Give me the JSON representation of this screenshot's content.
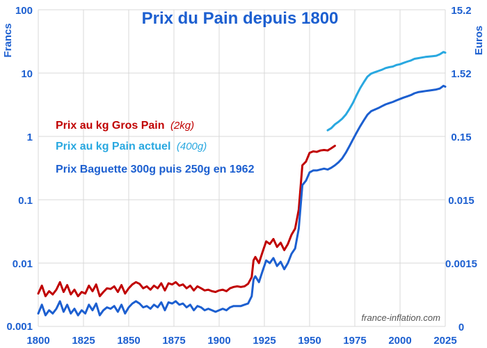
{
  "chart_data": {
    "type": "line",
    "title": "Prix du Pain depuis 1800",
    "left_axis_label": "Francs",
    "right_axis_label": "Euros",
    "left_scale": "log",
    "x_range": [
      1800,
      2025
    ],
    "y_range_francs": [
      0.001,
      100
    ],
    "x_ticks": [
      "1800",
      "1825",
      "1850",
      "1875",
      "1900",
      "1925",
      "1950",
      "1975",
      "2000",
      "2025"
    ],
    "y_ticks_left": [
      "0.001",
      "0.01",
      "0.1",
      "1",
      "10",
      "100"
    ],
    "y_ticks_left_values": [
      0.001,
      0.01,
      0.1,
      1,
      10,
      100
    ],
    "y_ticks_right": [
      "0",
      "0.0015",
      "0.015",
      "0.15",
      "1.52",
      "15.2"
    ],
    "y_ticks_right_values": [
      0.001,
      0.01,
      0.1,
      1,
      10,
      100
    ],
    "grid": true,
    "legend_position": "center-left",
    "watermark": "france-inflation.com",
    "colors": {
      "title": "#1c5fd0",
      "axis": "#1c5fd0",
      "grid": "#d9d9d9"
    },
    "series": [
      {
        "name": "Prix au kg Gros Pain",
        "note": "(2kg)",
        "color": "#c00000",
        "x": [
          1800,
          1802,
          1804,
          1806,
          1808,
          1810,
          1812,
          1814,
          1816,
          1818,
          1820,
          1822,
          1824,
          1826,
          1828,
          1830,
          1832,
          1834,
          1836,
          1838,
          1840,
          1842,
          1844,
          1846,
          1848,
          1850,
          1852,
          1854,
          1856,
          1858,
          1860,
          1862,
          1864,
          1866,
          1868,
          1870,
          1872,
          1874,
          1876,
          1878,
          1880,
          1882,
          1884,
          1886,
          1888,
          1890,
          1892,
          1894,
          1896,
          1898,
          1900,
          1902,
          1904,
          1906,
          1908,
          1910,
          1912,
          1914,
          1916,
          1918,
          1919,
          1920,
          1922,
          1924,
          1926,
          1928,
          1930,
          1932,
          1934,
          1936,
          1938,
          1940,
          1942,
          1944,
          1946,
          1948,
          1950,
          1952,
          1954,
          1956,
          1958,
          1960,
          1962,
          1964
        ],
        "y": [
          0.0033,
          0.0044,
          0.003,
          0.0036,
          0.0032,
          0.0038,
          0.005,
          0.0035,
          0.0045,
          0.0032,
          0.0038,
          0.003,
          0.0035,
          0.0033,
          0.0044,
          0.0036,
          0.0046,
          0.003,
          0.0035,
          0.004,
          0.0039,
          0.0043,
          0.0035,
          0.0045,
          0.0033,
          0.004,
          0.0046,
          0.005,
          0.0047,
          0.004,
          0.0043,
          0.0038,
          0.0044,
          0.004,
          0.0048,
          0.0037,
          0.0048,
          0.0046,
          0.005,
          0.0044,
          0.0046,
          0.004,
          0.0044,
          0.0037,
          0.0043,
          0.004,
          0.0037,
          0.0038,
          0.0036,
          0.0035,
          0.0037,
          0.0038,
          0.0036,
          0.004,
          0.0042,
          0.0043,
          0.0042,
          0.0043,
          0.0047,
          0.006,
          0.011,
          0.0125,
          0.01,
          0.015,
          0.022,
          0.02,
          0.024,
          0.018,
          0.021,
          0.016,
          0.02,
          0.028,
          0.035,
          0.07,
          0.35,
          0.4,
          0.55,
          0.58,
          0.57,
          0.6,
          0.61,
          0.6,
          0.65,
          0.71
        ]
      },
      {
        "name": "Prix au kg Pain actuel",
        "note": "(400g)",
        "color": "#29a8e0",
        "x": [
          1960,
          1962,
          1964,
          1966,
          1968,
          1970,
          1972,
          1974,
          1976,
          1978,
          1980,
          1982,
          1984,
          1986,
          1988,
          1990,
          1992,
          1994,
          1996,
          1998,
          2000,
          2002,
          2004,
          2006,
          2008,
          2010,
          2012,
          2014,
          2016,
          2018,
          2020,
          2022,
          2024,
          2025
        ],
        "y": [
          1.25,
          1.35,
          1.55,
          1.7,
          1.9,
          2.2,
          2.7,
          3.4,
          4.5,
          5.8,
          7.2,
          8.8,
          9.8,
          10.3,
          10.8,
          11.3,
          12.0,
          12.4,
          12.7,
          13.4,
          13.8,
          14.5,
          15.2,
          15.8,
          16.8,
          17.2,
          17.6,
          18.0,
          18.2,
          18.5,
          18.8,
          19.8,
          21.5,
          21.0
        ]
      },
      {
        "name": "Prix Baguette 300g puis 250g en 1962",
        "note": "",
        "color": "#1c5fd0",
        "x": [
          1800,
          1802,
          1804,
          1806,
          1808,
          1810,
          1812,
          1814,
          1816,
          1818,
          1820,
          1822,
          1824,
          1826,
          1828,
          1830,
          1832,
          1834,
          1836,
          1838,
          1840,
          1842,
          1844,
          1846,
          1848,
          1850,
          1852,
          1854,
          1856,
          1858,
          1860,
          1862,
          1864,
          1866,
          1868,
          1870,
          1872,
          1874,
          1876,
          1878,
          1880,
          1882,
          1884,
          1886,
          1888,
          1890,
          1892,
          1894,
          1896,
          1898,
          1900,
          1902,
          1904,
          1906,
          1908,
          1910,
          1912,
          1914,
          1916,
          1918,
          1919,
          1920,
          1922,
          1924,
          1926,
          1928,
          1930,
          1932,
          1934,
          1936,
          1938,
          1940,
          1942,
          1944,
          1946,
          1948,
          1950,
          1952,
          1954,
          1956,
          1958,
          1960,
          1962,
          1964,
          1966,
          1968,
          1970,
          1972,
          1974,
          1976,
          1978,
          1980,
          1982,
          1984,
          1986,
          1988,
          1990,
          1992,
          1994,
          1996,
          1998,
          2000,
          2002,
          2004,
          2006,
          2008,
          2010,
          2012,
          2014,
          2016,
          2018,
          2020,
          2022,
          2024,
          2025
        ],
        "y": [
          0.0016,
          0.0022,
          0.0015,
          0.0018,
          0.0016,
          0.0019,
          0.0025,
          0.0017,
          0.0022,
          0.0016,
          0.0019,
          0.0015,
          0.0018,
          0.0016,
          0.0022,
          0.0018,
          0.0023,
          0.0015,
          0.0018,
          0.002,
          0.0019,
          0.0021,
          0.0017,
          0.0022,
          0.0016,
          0.002,
          0.0023,
          0.0025,
          0.0023,
          0.002,
          0.0021,
          0.0019,
          0.0022,
          0.002,
          0.0024,
          0.0018,
          0.0024,
          0.0023,
          0.0025,
          0.0022,
          0.0023,
          0.002,
          0.0022,
          0.0018,
          0.0021,
          0.002,
          0.0018,
          0.0019,
          0.0018,
          0.0017,
          0.0018,
          0.0019,
          0.0018,
          0.002,
          0.0021,
          0.0021,
          0.0021,
          0.0022,
          0.0023,
          0.003,
          0.0055,
          0.0062,
          0.005,
          0.0075,
          0.011,
          0.01,
          0.012,
          0.009,
          0.0105,
          0.008,
          0.01,
          0.014,
          0.017,
          0.035,
          0.17,
          0.2,
          0.27,
          0.29,
          0.29,
          0.3,
          0.31,
          0.3,
          0.32,
          0.35,
          0.39,
          0.45,
          0.55,
          0.7,
          0.9,
          1.15,
          1.45,
          1.8,
          2.2,
          2.5,
          2.65,
          2.8,
          3.0,
          3.2,
          3.35,
          3.5,
          3.7,
          3.9,
          4.1,
          4.3,
          4.5,
          4.8,
          5.0,
          5.1,
          5.2,
          5.3,
          5.4,
          5.5,
          5.7,
          6.3,
          6.1
        ]
      }
    ]
  }
}
